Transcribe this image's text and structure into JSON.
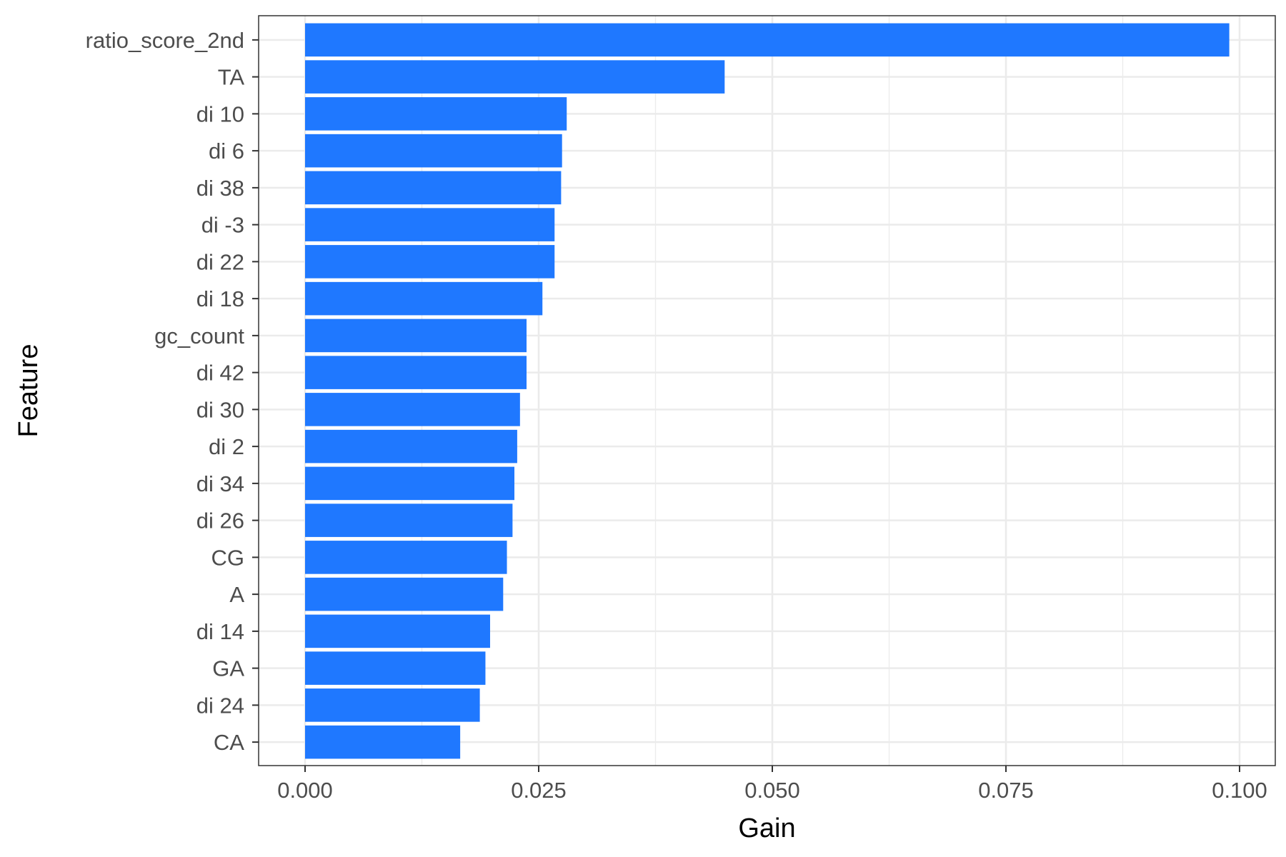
{
  "chart_data": {
    "type": "bar",
    "orientation": "horizontal",
    "title": "",
    "xlabel": "Gain",
    "ylabel": "Feature",
    "xlim": [
      0,
      0.1
    ],
    "x_ticks": [
      0,
      0.025,
      0.05,
      0.075,
      0.1
    ],
    "x_tick_labels": [
      "0.000",
      "0.025",
      "0.050",
      "0.075",
      "0.100"
    ],
    "grid": true,
    "legend": "none",
    "bar_color": "#1f78ff",
    "gridline_color": "#ebebeb",
    "categories": [
      "ratio_score_2nd",
      "TA",
      "di 10",
      "di 6",
      "di 38",
      "di -3",
      "di 22",
      "di 18",
      "gc_count",
      "di 42",
      "di 30",
      "di 2",
      "di 34",
      "di 26",
      "CG",
      "A",
      "di 14",
      "GA",
      "di 24",
      "CA"
    ],
    "values": [
      0.0989,
      0.0449,
      0.028,
      0.0275,
      0.0274,
      0.0267,
      0.0267,
      0.0254,
      0.0237,
      0.0237,
      0.023,
      0.0227,
      0.0224,
      0.0222,
      0.0216,
      0.0212,
      0.0198,
      0.0193,
      0.0187,
      0.0166
    ]
  }
}
